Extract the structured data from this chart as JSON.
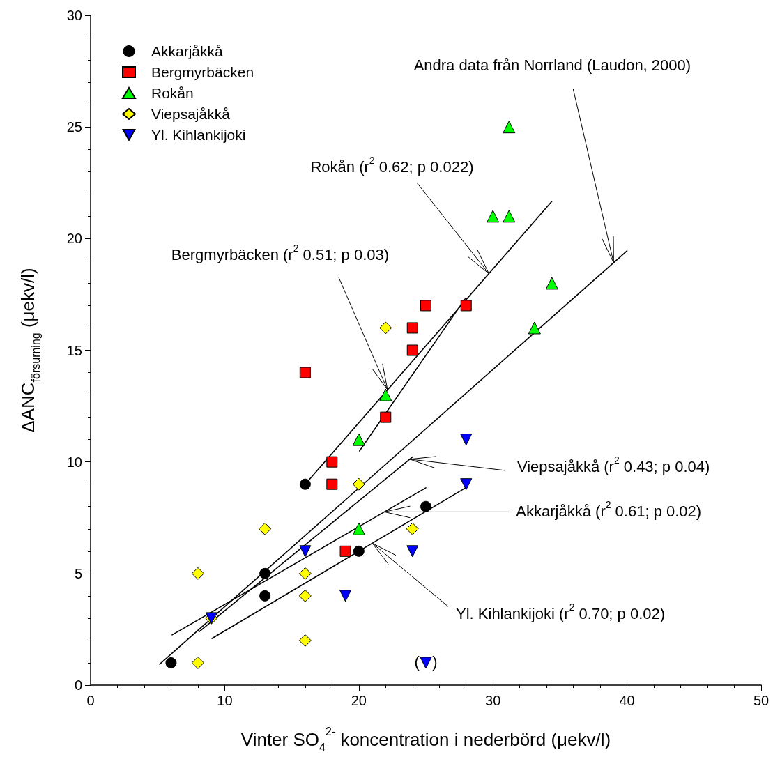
{
  "chart_data": {
    "type": "scatter",
    "xlabel": "Vinter SO$_{4}$$^{2-}$ koncentration i nederbörd (μekv/l)",
    "ylabel": "ΔANC$_{försurning}$ (μekv/l)",
    "xlim": [
      0,
      50
    ],
    "xticks": [
      0,
      10,
      20,
      30,
      40,
      50
    ],
    "ylim": [
      0,
      30
    ],
    "yticks": [
      0,
      5,
      10,
      15,
      20,
      25,
      30
    ],
    "grid": false,
    "legend": "top left",
    "series": [
      {
        "name": "Akkarjåkkå",
        "color": "#000000",
        "marker": "circle",
        "x": [
          6,
          13,
          13,
          16,
          20,
          25
        ],
        "values": [
          1,
          5,
          4,
          9,
          6,
          8
        ]
      },
      {
        "name": "Bergmyrbäcken",
        "color": "#ff0000",
        "marker": "square",
        "x": [
          16,
          18,
          18,
          19,
          22,
          24,
          24,
          25,
          28
        ],
        "values": [
          14,
          10,
          9,
          6,
          12,
          16,
          15,
          17,
          17
        ]
      },
      {
        "name": "Rokån",
        "color": "#00ff00",
        "marker": "triangle",
        "x": [
          20,
          20,
          22,
          30,
          31.2,
          31.2,
          33.1,
          34.4
        ],
        "values": [
          11,
          7,
          13,
          21,
          21,
          25,
          16,
          18
        ]
      },
      {
        "name": "Viepsajåkkå",
        "color": "#ffff00",
        "marker": "diamond",
        "x": [
          8,
          8,
          9,
          13,
          16,
          16,
          16,
          20,
          22,
          24
        ],
        "values": [
          5,
          1,
          3,
          7,
          5,
          4,
          2,
          9,
          16,
          7
        ]
      },
      {
        "name": "Yl. Kihlankijoki",
        "color": "#0000ff",
        "marker": "triangle-down",
        "x": [
          9,
          16,
          19,
          24,
          25,
          28,
          28
        ],
        "values": [
          3,
          6,
          4,
          6,
          1,
          9,
          11
        ]
      },
      {
        "type": "line",
        "color": "#000000",
        "marker": "none",
        "x": [
          5.15,
          40
        ],
        "values": [
          0.94,
          19.45
        ]
      },
      {
        "type": "line",
        "color": "#000000",
        "marker": "none",
        "x": [
          16,
          34.4
        ],
        "values": [
          9,
          21.67
        ]
      },
      {
        "type": "line",
        "color": "#000000",
        "marker": "none",
        "x": [
          20.05,
          27.96
        ],
        "values": [
          10.49,
          17.33
        ]
      },
      {
        "type": "line",
        "color": "#000000",
        "marker": "none",
        "x": [
          8.09,
          24
        ],
        "values": [
          2.39,
          10.22
        ]
      },
      {
        "type": "line",
        "color": "#000000",
        "marker": "none",
        "x": [
          6.08,
          25
        ],
        "values": [
          2.25,
          8.84
        ]
      },
      {
        "type": "line",
        "color": "#000000",
        "marker": "none",
        "x": [
          9.05,
          27.96
        ],
        "values": [
          2.09,
          8.84
        ]
      }
    ],
    "annotations": [
      {
        "text": "Andra data från Norrland (Laudon, 2000)",
        "x": 39,
        "y": 18.92
      },
      {
        "text": "Rokån (r$^{2}$ 0.62; p 0.022)",
        "x": 29.7,
        "y": 18.43
      },
      {
        "text": "Bergmyrbäcken (r$^{2}$ 0.51; p 0.03)",
        "x": 22.14,
        "y": 13.23
      },
      {
        "text": "Viepsajåkkå (r$^{2}$ 0.43; p 0.04)",
        "x": 23.8,
        "y": 10.12
      },
      {
        "text": "Akkarjåkkå (r$^{2}$ 0.61; p 0.02)",
        "x": 21.9,
        "y": 7.76
      },
      {
        "text": "Yl. Kihlankijoki (r$^{2}$ 0.70; p 0.02)",
        "x": 21,
        "y": 6.36
      },
      {
        "text": "(   )",
        "x": 25,
        "y": 1
      }
    ]
  }
}
